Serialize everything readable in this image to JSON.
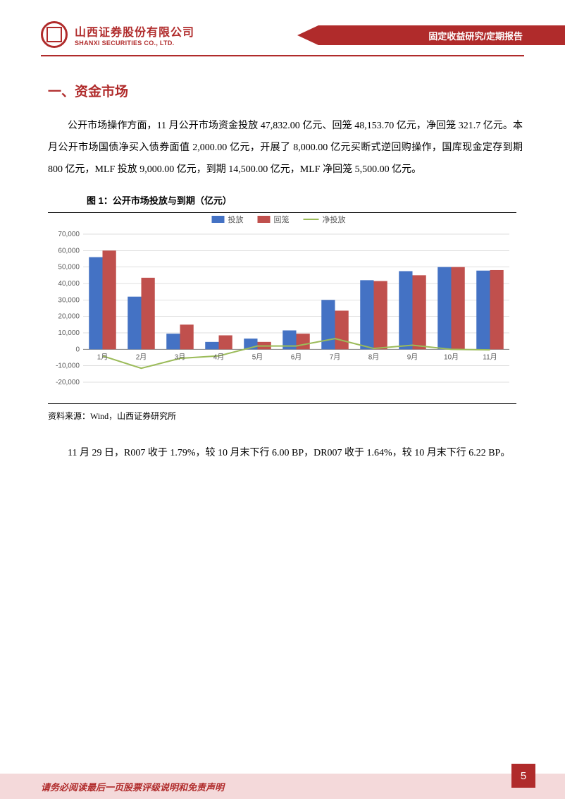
{
  "header": {
    "company_cn": "山西证券股份有限公司",
    "company_en": "SHANXI SECURITIES CO., LTD.",
    "banner_text": "固定收益研究/定期报告"
  },
  "section_title": "一、资金市场",
  "paragraph1": "公开市场操作方面，11 月公开市场资金投放 47,832.00 亿元、回笼 48,153.70 亿元，净回笼 321.7 亿元。本月公开市场国债净买入债券面值 2,000.00 亿元，开展了 8,000.00 亿元买断式逆回购操作，国库现金定存到期 800 亿元，MLF 投放 9,000.00 亿元，到期 14,500.00 亿元，MLF 净回笼 5,500.00 亿元。",
  "chart": {
    "title": "图 1：公开市场投放与到期（亿元）",
    "type": "bar_line",
    "categories": [
      "1月",
      "2月",
      "3月",
      "4月",
      "5月",
      "6月",
      "7月",
      "8月",
      "9月",
      "10月",
      "11月"
    ],
    "series": [
      {
        "name": "投放",
        "type": "bar",
        "color": "#4472c4",
        "values": [
          56000,
          32000,
          9500,
          4500,
          6500,
          11500,
          30000,
          42000,
          47500,
          50000,
          47832
        ]
      },
      {
        "name": "回笼",
        "type": "bar",
        "color": "#c0504d",
        "values": [
          60000,
          43500,
          15000,
          8500,
          4500,
          9500,
          23500,
          41500,
          45000,
          50000,
          48154
        ]
      },
      {
        "name": "净投放",
        "type": "line",
        "color": "#9bbb59",
        "values": [
          -4000,
          -11500,
          -5500,
          -4000,
          2000,
          2000,
          6500,
          500,
          2500,
          0,
          -322
        ]
      }
    ],
    "ylim": [
      -20000,
      70000
    ],
    "ytick_step": 10000,
    "yticks": [
      "-20,000",
      "-10,000",
      "0",
      "10,000",
      "20,000",
      "30,000",
      "40,000",
      "50,000",
      "60,000",
      "70,000"
    ],
    "grid_color": "#bfbfbf",
    "background": "#ffffff",
    "legend_fontsize": 11,
    "axis_fontsize": 10,
    "bar_width": 0.35,
    "line_width": 2
  },
  "chart_source": "资料来源：Wind，山西证券研究所",
  "paragraph2": "11 月 29 日，R007 收于 1.79%，较 10 月末下行 6.00 BP，DR007 收于 1.64%，较 10 月末下行 6.22 BP。",
  "footer": {
    "text": "请务必阅读最后一页股票评级说明和免责声明",
    "page": "5"
  }
}
